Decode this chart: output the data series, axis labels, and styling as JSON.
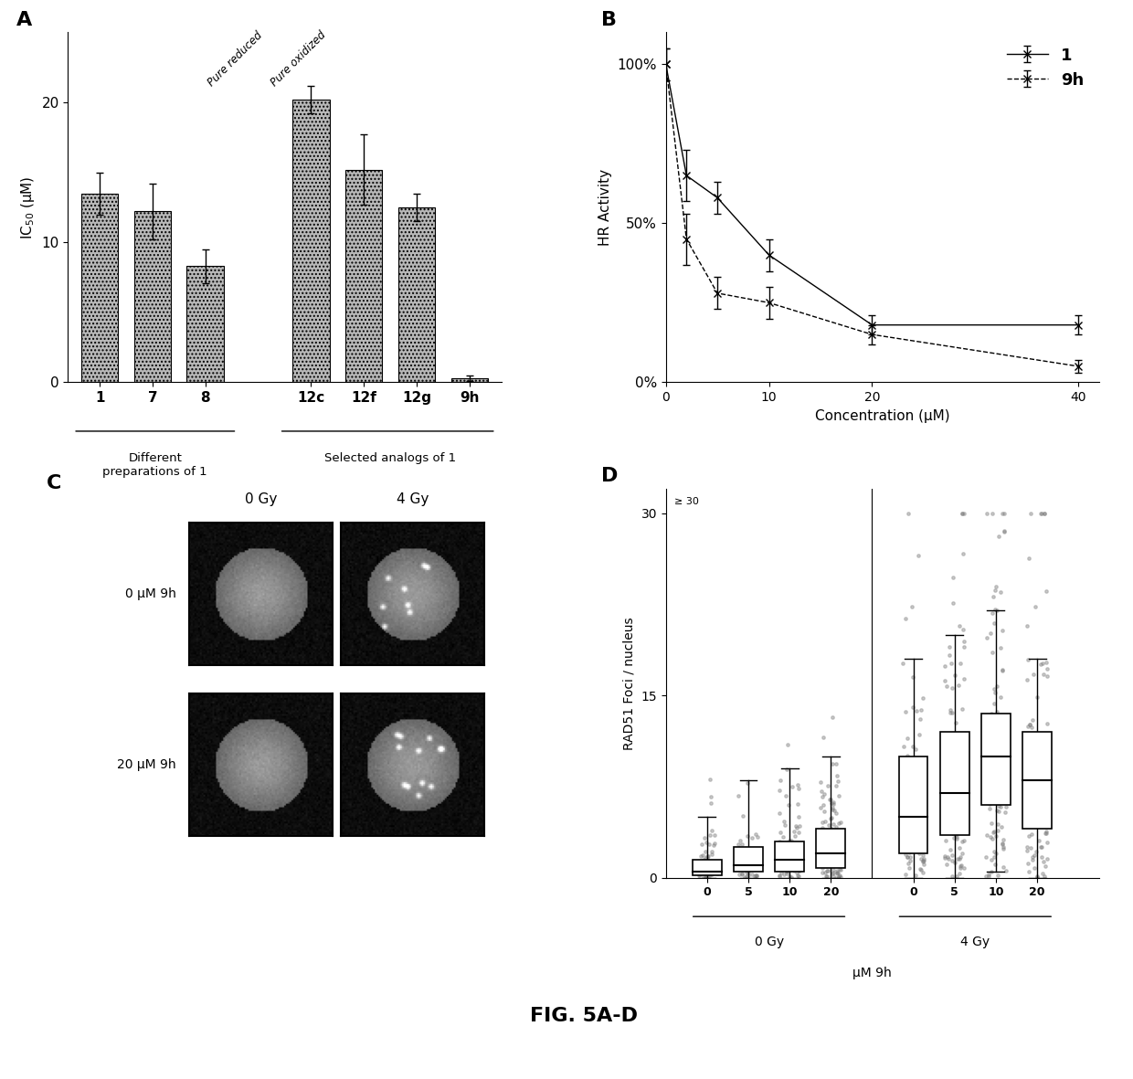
{
  "panel_A": {
    "categories": [
      "1",
      "7",
      "8",
      "12c",
      "12f",
      "12g",
      "9h"
    ],
    "values": [
      13.5,
      12.2,
      8.3,
      20.2,
      15.2,
      12.5,
      0.3
    ],
    "errors": [
      1.5,
      2.0,
      1.2,
      1.0,
      2.5,
      1.0,
      0.2
    ],
    "ylabel": "IC$_{50}$ (μM)",
    "ylim": [
      0,
      25
    ],
    "yticks": [
      0,
      10,
      20
    ],
    "group1_label": "Different\npreparations of 1",
    "group2_label": "Selected analogs of 1",
    "annot1": "Pure reduced",
    "annot2": "Pure oxidized",
    "bar_color": "#b8b8b8",
    "bar_hatch": "...."
  },
  "panel_B": {
    "compound1_x": [
      0,
      2,
      5,
      10,
      20,
      40
    ],
    "compound1_y": [
      100,
      65,
      58,
      40,
      18,
      18
    ],
    "compound1_yerr": [
      5,
      8,
      5,
      5,
      3,
      3
    ],
    "compound9h_x": [
      0,
      2,
      5,
      10,
      20,
      40
    ],
    "compound9h_y": [
      100,
      45,
      28,
      25,
      15,
      5
    ],
    "compound9h_yerr": [
      5,
      8,
      5,
      5,
      3,
      2
    ],
    "xlabel": "Concentration (μM)",
    "ylabel": "HR Activity",
    "ytick_labels": [
      "0%",
      "50%",
      "100%"
    ],
    "ytick_vals": [
      0,
      50,
      100
    ],
    "xlim": [
      0,
      42
    ],
    "ylim": [
      0,
      110
    ],
    "legend_1": "1",
    "legend_9h": "9h"
  },
  "panel_C": {
    "row_labels": [
      "0 μM 9h",
      "20 μM 9h"
    ],
    "col_labels": [
      "0 Gy",
      "4 Gy"
    ]
  },
  "panel_D": {
    "groups": [
      "0",
      "5",
      "10",
      "20",
      "0",
      "5",
      "10",
      "20"
    ],
    "medians": [
      0.5,
      1.0,
      1.5,
      2.0,
      5.0,
      7.0,
      10.0,
      8.0
    ],
    "q1": [
      0.2,
      0.5,
      0.5,
      0.8,
      2.0,
      3.5,
      6.0,
      4.0
    ],
    "q3": [
      1.5,
      2.5,
      3.0,
      4.0,
      10.0,
      12.0,
      13.5,
      12.0
    ],
    "whisker_low": [
      0.0,
      0.0,
      0.0,
      0.0,
      0.0,
      0.0,
      0.5,
      0.0
    ],
    "whisker_high": [
      5.0,
      8.0,
      9.0,
      10.0,
      18.0,
      20.0,
      22.0,
      18.0
    ],
    "ylabel": "RAD51 Foci / nucleus",
    "ylim": [
      0,
      32
    ],
    "yticks": [
      0,
      15,
      30
    ],
    "xlabel_main": "μM 9h",
    "xticklabels": [
      "0",
      "5",
      "10",
      "20",
      "0",
      "5",
      "10",
      "20"
    ]
  },
  "figure_label": "FIG. 5A-D",
  "background_color": "#ffffff"
}
